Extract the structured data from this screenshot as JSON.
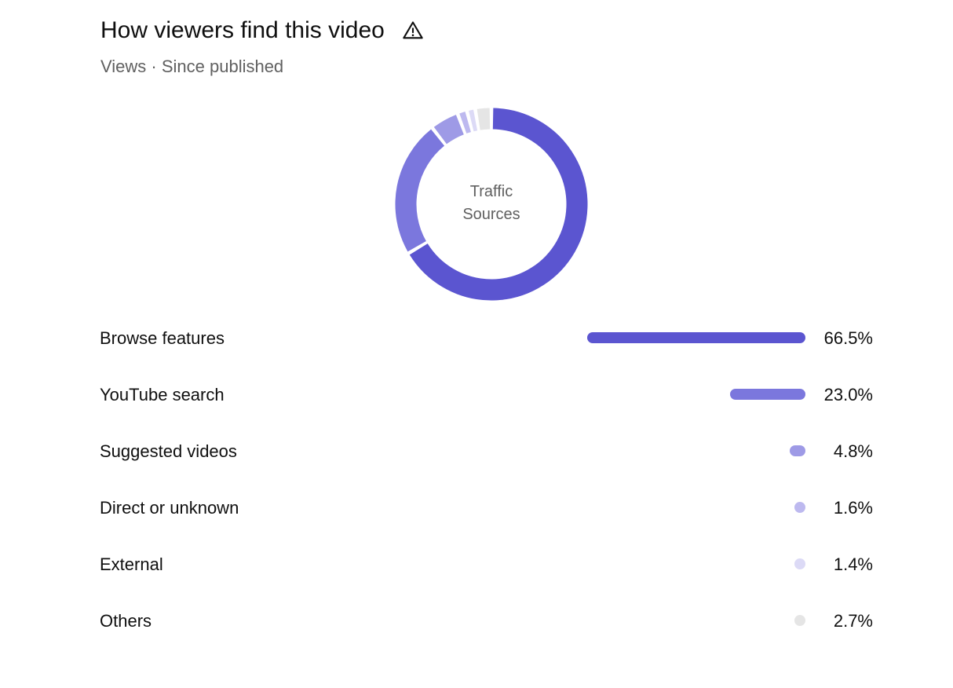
{
  "header": {
    "title": "How viewers find this video",
    "warning_icon": "warning-triangle-icon",
    "subtitle": "Views · Since published"
  },
  "chart_data": {
    "type": "pie",
    "donut": true,
    "center_label": [
      "Traffic",
      "Sources"
    ],
    "categories": [
      "Browse features",
      "YouTube search",
      "Suggested videos",
      "Direct or unknown",
      "External",
      "Others"
    ],
    "values": [
      66.5,
      23.0,
      4.8,
      1.6,
      1.4,
      2.7
    ],
    "value_labels": [
      "66.5%",
      "23.0%",
      "4.8%",
      "1.6%",
      "1.4%",
      "2.7%"
    ],
    "colors": [
      "#5b55d0",
      "#7b77dd",
      "#9e9ae6",
      "#bdb9ef",
      "#dcdaf6",
      "#e5e5e5"
    ]
  }
}
